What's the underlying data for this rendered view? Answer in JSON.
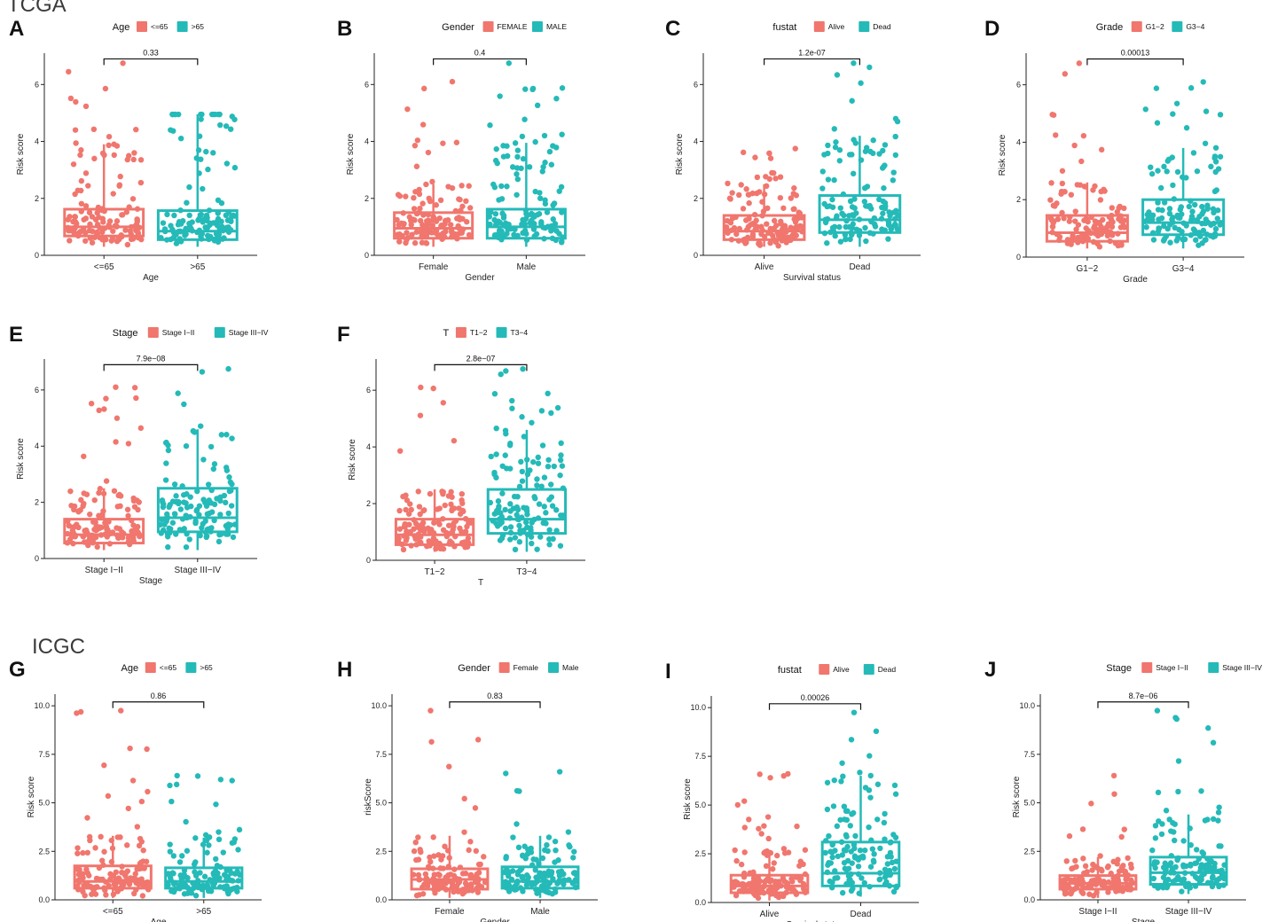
{
  "sections": {
    "tcga": "TCGA",
    "icgc": "ICGC"
  },
  "colors": {
    "group1": "#F0766E",
    "group2": "#24BAB8",
    "axis": "#222222",
    "text": "#222222"
  },
  "chart_data": [
    {
      "type": "box",
      "panel_label": "A",
      "legend_title": "Age",
      "legend_items": [
        "<=65",
        ">65"
      ],
      "categories": [
        "<=65",
        ">65"
      ],
      "xlabel": "Age",
      "ylabel": "Risk score",
      "y_ticks": [
        "0",
        "2",
        "4",
        "6"
      ],
      "ylim": [
        0,
        7.1
      ],
      "p_value": "0.33",
      "bracket_y": 6.9,
      "box_stats": [
        {
          "min": 0.3,
          "q1": 0.68,
          "median": 1.0,
          "q3": 1.62,
          "max": 3.9
        },
        {
          "min": 0.3,
          "q1": 0.55,
          "median": 0.85,
          "q3": 1.57,
          "max": 4.95
        }
      ],
      "point_maxima": [
        6.75,
        4.95
      ]
    },
    {
      "type": "box",
      "panel_label": "B",
      "legend_title": "Gender",
      "legend_items": [
        "FEMALE",
        "MALE"
      ],
      "categories": [
        "Female",
        "Male"
      ],
      "xlabel": "Gender",
      "ylabel": "Risk score",
      "y_ticks": [
        "0",
        "2",
        "4",
        "6"
      ],
      "ylim": [
        0,
        7.1
      ],
      "p_value": "0.4",
      "bracket_y": 6.9,
      "box_stats": [
        {
          "min": 0.3,
          "q1": 0.6,
          "median": 0.95,
          "q3": 1.5,
          "max": 2.5
        },
        {
          "min": 0.3,
          "q1": 0.6,
          "median": 1.0,
          "q3": 1.62,
          "max": 3.95
        }
      ],
      "point_maxima": [
        6.1,
        6.75
      ]
    },
    {
      "type": "box",
      "panel_label": "C",
      "legend_title": "fustat",
      "legend_items": [
        "Alive",
        "Dead"
      ],
      "categories": [
        "Alive",
        "Dead"
      ],
      "xlabel": "Survival status",
      "ylabel": "Risk score",
      "y_ticks": [
        "0",
        "2",
        "4",
        "6"
      ],
      "ylim": [
        0,
        7.1
      ],
      "p_value": "1.2e-07",
      "bracket_y": 6.9,
      "box_stats": [
        {
          "min": 0.3,
          "q1": 0.55,
          "median": 0.85,
          "q3": 1.4,
          "max": 2.5
        },
        {
          "min": 0.3,
          "q1": 0.8,
          "median": 1.25,
          "q3": 2.1,
          "max": 4.2
        }
      ],
      "point_maxima": [
        3.75,
        6.75
      ]
    },
    {
      "type": "box",
      "panel_label": "D",
      "legend_title": "Grade",
      "legend_items": [
        "G1−2",
        "G3−4"
      ],
      "categories": [
        "G1−2",
        "G3−4"
      ],
      "xlabel": "Grade",
      "ylabel": "Risk score",
      "y_ticks": [
        "0",
        "2",
        "4",
        "6"
      ],
      "ylim": [
        0,
        7.1
      ],
      "p_value": "0.00013",
      "bracket_y": 6.9,
      "box_stats": [
        {
          "min": 0.3,
          "q1": 0.55,
          "median": 0.85,
          "q3": 1.45,
          "max": 2.6
        },
        {
          "min": 0.3,
          "q1": 0.78,
          "median": 1.2,
          "q3": 2.0,
          "max": 3.8
        }
      ],
      "point_maxima": [
        6.75,
        6.1
      ]
    },
    {
      "type": "box",
      "panel_label": "E",
      "legend_title": "Stage",
      "legend_items": [
        "Stage I−II",
        "Stage III−IV"
      ],
      "categories": [
        "Stage I−II",
        "Stage III−IV"
      ],
      "xlabel": "Stage",
      "ylabel": "Risk score",
      "y_ticks": [
        "0",
        "2",
        "4",
        "6"
      ],
      "ylim": [
        0,
        7.1
      ],
      "p_value": "7.9e−08",
      "bracket_y": 6.9,
      "box_stats": [
        {
          "min": 0.3,
          "q1": 0.55,
          "median": 0.85,
          "q3": 1.4,
          "max": 2.5
        },
        {
          "min": 0.3,
          "q1": 0.95,
          "median": 1.45,
          "q3": 2.5,
          "max": 4.6
        }
      ],
      "point_maxima": [
        6.1,
        6.75
      ]
    },
    {
      "type": "box",
      "panel_label": "F",
      "legend_title": "T",
      "legend_items": [
        "T1−2",
        "T3−4"
      ],
      "categories": [
        "T1−2",
        "T3−4"
      ],
      "xlabel": "T",
      "ylabel": "Risk score",
      "y_ticks": [
        "0",
        "2",
        "4",
        "6"
      ],
      "ylim": [
        0,
        7.1
      ],
      "p_value": "2.8e−07",
      "bracket_y": 6.9,
      "box_stats": [
        {
          "min": 0.3,
          "q1": 0.55,
          "median": 0.9,
          "q3": 1.45,
          "max": 2.5
        },
        {
          "min": 0.3,
          "q1": 0.95,
          "median": 1.45,
          "q3": 2.5,
          "max": 4.6
        }
      ],
      "point_maxima": [
        6.1,
        6.75
      ]
    },
    {
      "type": "box",
      "panel_label": "G",
      "legend_title": "Age",
      "legend_items": [
        "<=65",
        ">65"
      ],
      "categories": [
        "<=65",
        ">65"
      ],
      "xlabel": "Age",
      "ylabel": "Risk score",
      "y_ticks": [
        "0.0",
        "2.5",
        "5.0",
        "7.5",
        "10.0"
      ],
      "ylim": [
        0,
        10.6
      ],
      "p_value": "0.86",
      "bracket_y": 10.2,
      "box_stats": [
        {
          "min": 0.1,
          "q1": 0.6,
          "median": 0.95,
          "q3": 1.75,
          "max": 3.3
        },
        {
          "min": 0.1,
          "q1": 0.6,
          "median": 0.95,
          "q3": 1.65,
          "max": 3.2
        }
      ],
      "point_maxima": [
        9.75,
        6.4
      ]
    },
    {
      "type": "box",
      "panel_label": "H",
      "legend_title": "Gender",
      "legend_items": [
        "Female",
        "Male"
      ],
      "categories": [
        "Female",
        "Male"
      ],
      "xlabel": "Gender",
      "ylabel": "riskScore",
      "y_ticks": [
        "0.0",
        "2.5",
        "5.0",
        "7.5",
        "10.0"
      ],
      "ylim": [
        0,
        10.6
      ],
      "p_value": "0.83",
      "bracket_y": 10.2,
      "box_stats": [
        {
          "min": 0.1,
          "q1": 0.55,
          "median": 1.05,
          "q3": 1.6,
          "max": 3.3
        },
        {
          "min": 0.1,
          "q1": 0.6,
          "median": 0.95,
          "q3": 1.7,
          "max": 3.3
        }
      ],
      "point_maxima": [
        9.75,
        6.6
      ]
    },
    {
      "type": "box",
      "panel_label": "I",
      "legend_title": "fustat",
      "legend_items": [
        "Alive",
        "Dead"
      ],
      "categories": [
        "Alive",
        "Dead"
      ],
      "xlabel": "Survival status",
      "ylabel": "Risk score",
      "y_ticks": [
        "0.0",
        "2.5",
        "5.0",
        "7.5",
        "10.0"
      ],
      "ylim": [
        0,
        10.6
      ],
      "p_value": "0.00026",
      "bracket_y": 10.2,
      "box_stats": [
        {
          "min": 0.1,
          "q1": 0.5,
          "median": 0.85,
          "q3": 1.4,
          "max": 2.7
        },
        {
          "min": 0.3,
          "q1": 0.85,
          "median": 1.5,
          "q3": 3.1,
          "max": 6.5
        }
      ],
      "point_maxima": [
        6.6,
        9.75
      ]
    },
    {
      "type": "box",
      "panel_label": "J",
      "legend_title": "Stage",
      "legend_items": [
        "Stage I−II",
        "Stage III−IV"
      ],
      "categories": [
        "Stage I−II",
        "Stage III−IV"
      ],
      "xlabel": "Stage",
      "ylabel": "Risk score",
      "y_ticks": [
        "0.0",
        "2.5",
        "5.0",
        "7.5",
        "10.0"
      ],
      "ylim": [
        0,
        10.6
      ],
      "p_value": "8.7e−06",
      "bracket_y": 10.2,
      "box_stats": [
        {
          "min": 0.1,
          "q1": 0.55,
          "median": 0.85,
          "q3": 1.25,
          "max": 2.2
        },
        {
          "min": 0.3,
          "q1": 0.8,
          "median": 1.4,
          "q3": 2.2,
          "max": 4.4
        }
      ],
      "point_maxima": [
        6.4,
        9.75
      ]
    }
  ]
}
